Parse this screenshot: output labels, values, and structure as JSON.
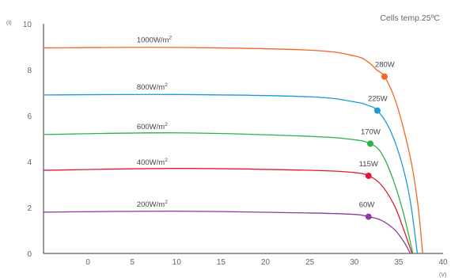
{
  "chart_data": {
    "type": "line",
    "annotation": "Cells temp.25ºC",
    "ylabel": "(I)",
    "xlabel": "(V)",
    "xlim": [
      -5,
      40
    ],
    "ylim": [
      0,
      10
    ],
    "x_ticks": [
      0,
      5,
      10,
      15,
      20,
      25,
      30,
      35,
      40
    ],
    "y_ticks": [
      0,
      2,
      4,
      6,
      8,
      10
    ],
    "grid": false,
    "series": [
      {
        "name": "1000W/m",
        "name_sup": "2",
        "color": "#f26522",
        "points": [
          [
            -5,
            8.95
          ],
          [
            10,
            8.97
          ],
          [
            25,
            8.85
          ],
          [
            30,
            8.6
          ],
          [
            31.5,
            8.35
          ],
          [
            32.5,
            8.0
          ],
          [
            33.4,
            7.7
          ],
          [
            34.5,
            6.8
          ],
          [
            35.5,
            5.5
          ],
          [
            36.5,
            3.8
          ],
          [
            37.2,
            2.0
          ],
          [
            37.7,
            0.0
          ]
        ],
        "mpp": {
          "x": 33.4,
          "y": 7.7,
          "label": "280W"
        }
      },
      {
        "name": "800W/m",
        "name_sup": "2",
        "color": "#1a9ad6",
        "points": [
          [
            -5,
            6.9
          ],
          [
            10,
            6.92
          ],
          [
            25,
            6.82
          ],
          [
            30,
            6.6
          ],
          [
            31.5,
            6.45
          ],
          [
            32.6,
            6.22
          ],
          [
            34,
            5.4
          ],
          [
            35.3,
            4.0
          ],
          [
            36.3,
            2.3
          ],
          [
            37.1,
            0.0
          ]
        ],
        "mpp": {
          "x": 32.6,
          "y": 6.22,
          "label": "225W"
        }
      },
      {
        "name": "600W/m",
        "name_sup": "2",
        "color": "#2ab24a",
        "points": [
          [
            -5,
            5.18
          ],
          [
            10,
            5.25
          ],
          [
            25,
            5.1
          ],
          [
            30,
            4.95
          ],
          [
            31.8,
            4.78
          ],
          [
            33,
            4.4
          ],
          [
            34.3,
            3.3
          ],
          [
            35.5,
            1.8
          ],
          [
            36.6,
            0.0
          ]
        ],
        "mpp": {
          "x": 31.8,
          "y": 4.78,
          "label": "170W"
        }
      },
      {
        "name": "400W/m",
        "name_sup": "2",
        "color": "#e3192f",
        "points": [
          [
            -5,
            3.62
          ],
          [
            10,
            3.7
          ],
          [
            25,
            3.62
          ],
          [
            30,
            3.52
          ],
          [
            31.6,
            3.38
          ],
          [
            33,
            3.0
          ],
          [
            34.5,
            2.1
          ],
          [
            35.6,
            1.0
          ],
          [
            36.5,
            0.0
          ]
        ],
        "mpp": {
          "x": 31.6,
          "y": 3.38,
          "label": "115W"
        }
      },
      {
        "name": "200W/m",
        "name_sup": "2",
        "color": "#8e3a9e",
        "points": [
          [
            -5,
            1.8
          ],
          [
            10,
            1.84
          ],
          [
            25,
            1.76
          ],
          [
            30,
            1.7
          ],
          [
            31.6,
            1.6
          ],
          [
            33,
            1.45
          ],
          [
            34.5,
            1.05
          ],
          [
            35.6,
            0.5
          ],
          [
            36.3,
            0.0
          ]
        ],
        "mpp": {
          "x": 31.6,
          "y": 1.6,
          "label": "60W"
        }
      }
    ]
  }
}
